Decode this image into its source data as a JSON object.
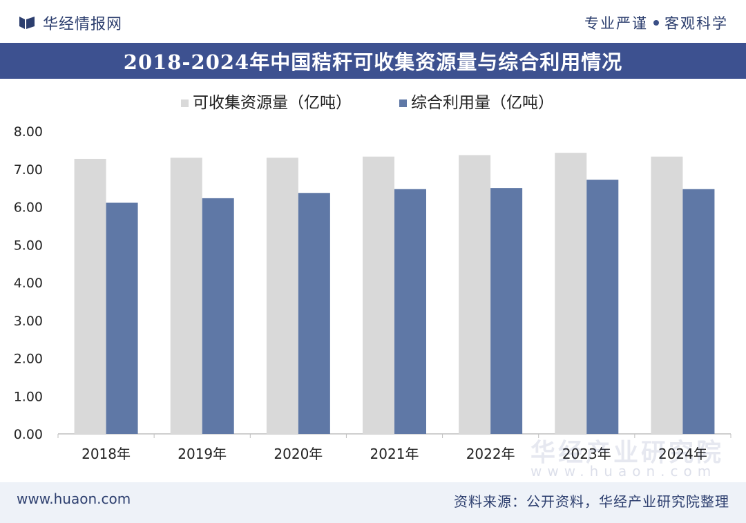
{
  "header": {
    "brand": "华经情报网",
    "slogan_left": "专业严谨",
    "slogan_right": "客观科学"
  },
  "footer": {
    "website": "www.huaon.com",
    "source": "资料来源：公开资料，华经产业研究院整理"
  },
  "watermark": {
    "org": "华经产业研究院",
    "url": "www.huaon.com"
  },
  "colors": {
    "series1": "#d9d9d9",
    "series2": "#5f78a6",
    "title_bg": "#3d5190",
    "text": "#2c3e6e"
  },
  "chart_data": {
    "type": "bar",
    "title": "2018-2024年中国秸秆可收集资源量与综合利用情况",
    "categories": [
      "2018年",
      "2019年",
      "2020年",
      "2021年",
      "2022年",
      "2023年",
      "2024年"
    ],
    "series": [
      {
        "name": "可收集资源量（亿吨）",
        "values": [
          7.27,
          7.3,
          7.3,
          7.33,
          7.37,
          7.43,
          7.33
        ]
      },
      {
        "name": "综合利用量（亿吨）",
        "values": [
          6.11,
          6.23,
          6.37,
          6.47,
          6.5,
          6.72,
          6.47
        ]
      }
    ],
    "yticks": [
      "0.00",
      "1.00",
      "2.00",
      "3.00",
      "4.00",
      "5.00",
      "6.00",
      "7.00",
      "8.00"
    ],
    "ylim": [
      0,
      8
    ],
    "xlabel": "",
    "ylabel": "",
    "legend": "top-left",
    "grid": false
  }
}
